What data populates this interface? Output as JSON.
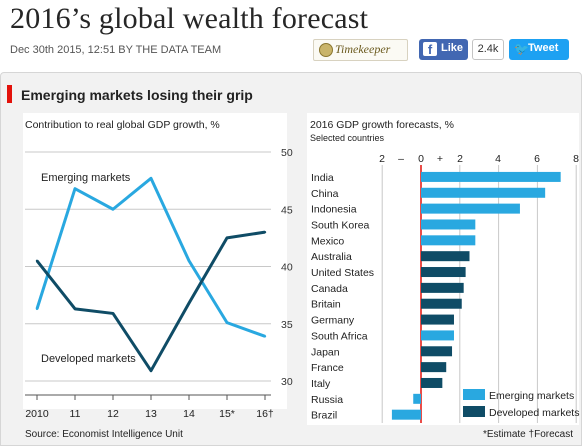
{
  "article": {
    "headline": "2016’s global wealth forecast",
    "byline": "Dec 30th 2015, 12:51 BY THE DATA TEAM"
  },
  "share": {
    "timekeeper_label": "Timekeeper",
    "facebook_label": "Like",
    "facebook_count": "2.4k",
    "twitter_label": "Tweet"
  },
  "colors": {
    "emerging": "#29a8e0",
    "developed": "#0f4c66",
    "accent_red": "#e3120b"
  },
  "figure": {
    "title": "Emerging markets losing their grip",
    "source": "Source: Economist Intelligence Unit",
    "footnote": "*Estimate   †Forecast"
  },
  "chart_data": [
    {
      "type": "line",
      "title": "Contribution to real global GDP growth, %",
      "x": [
        "2010",
        "11",
        "12",
        "13",
        "14",
        "15*",
        "16†"
      ],
      "ylim": [
        30,
        50
      ],
      "yticks": [
        30,
        35,
        40,
        45,
        50
      ],
      "series": [
        {
          "name": "Emerging markets",
          "values": [
            36.3,
            46.8,
            45.0,
            47.7,
            40.5,
            35.1,
            33.9
          ]
        },
        {
          "name": "Developed markets",
          "values": [
            40.5,
            36.3,
            35.9,
            30.9,
            36.8,
            42.5,
            43.0
          ]
        }
      ]
    },
    {
      "type": "bar",
      "title": "2016 GDP growth forecasts, %",
      "subtitle": "Selected countries",
      "xlim": [
        -2,
        8
      ],
      "xticks": [
        "2",
        "–",
        "0",
        "+",
        "2",
        "4",
        "6",
        "8"
      ],
      "categories": [
        "India",
        "China",
        "Indonesia",
        "South Korea",
        "Mexico",
        "Australia",
        "United States",
        "Canada",
        "Britain",
        "Germany",
        "South Africa",
        "Japan",
        "France",
        "Italy",
        "Russia",
        "Brazil"
      ],
      "values": [
        7.2,
        6.4,
        5.1,
        2.8,
        2.8,
        2.5,
        2.3,
        2.2,
        2.1,
        1.7,
        1.7,
        1.6,
        1.3,
        1.1,
        -0.4,
        -1.5
      ],
      "groups": [
        "emerging",
        "emerging",
        "emerging",
        "emerging",
        "emerging",
        "developed",
        "developed",
        "developed",
        "developed",
        "developed",
        "emerging",
        "developed",
        "developed",
        "developed",
        "emerging",
        "emerging"
      ],
      "legend": [
        "Emerging markets",
        "Developed markets"
      ]
    }
  ]
}
